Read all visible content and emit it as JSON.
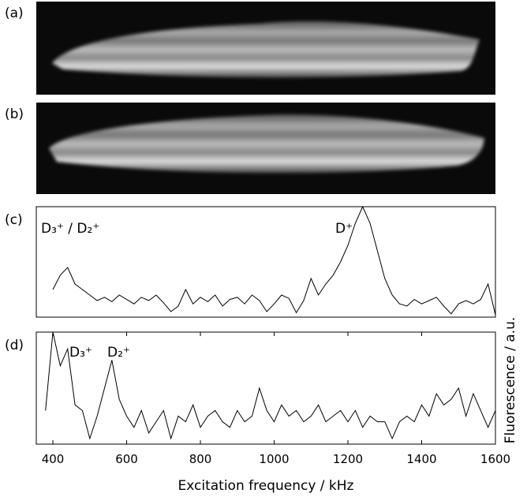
{
  "images": [
    {
      "label": "(a)"
    },
    {
      "label": "(b)"
    }
  ],
  "shared_ylabel": "Fluorescence / a.u.",
  "chart_data": [
    {
      "type": "line",
      "panel_label": "(c)",
      "color": "#000000",
      "xlim": [
        355,
        1600
      ],
      "ylim": [
        0,
        1
      ],
      "x": [
        400,
        420,
        440,
        460,
        480,
        500,
        520,
        540,
        560,
        580,
        600,
        620,
        640,
        660,
        680,
        700,
        720,
        740,
        760,
        780,
        800,
        820,
        840,
        860,
        880,
        900,
        920,
        940,
        960,
        980,
        1000,
        1020,
        1040,
        1060,
        1080,
        1100,
        1120,
        1140,
        1160,
        1180,
        1200,
        1220,
        1240,
        1260,
        1280,
        1300,
        1320,
        1340,
        1360,
        1380,
        1400,
        1420,
        1440,
        1460,
        1480,
        1500,
        1520,
        1540,
        1560,
        1580,
        1600
      ],
      "values": [
        0.25,
        0.38,
        0.45,
        0.3,
        0.25,
        0.2,
        0.15,
        0.18,
        0.14,
        0.2,
        0.16,
        0.12,
        0.18,
        0.15,
        0.2,
        0.13,
        0.05,
        0.1,
        0.25,
        0.12,
        0.18,
        0.14,
        0.2,
        0.1,
        0.16,
        0.18,
        0.12,
        0.2,
        0.15,
        0.05,
        0.12,
        0.2,
        0.17,
        0.04,
        0.15,
        0.35,
        0.2,
        0.3,
        0.38,
        0.5,
        0.65,
        0.85,
        1.0,
        0.85,
        0.6,
        0.35,
        0.2,
        0.12,
        0.1,
        0.16,
        0.12,
        0.15,
        0.18,
        0.1,
        0.03,
        0.12,
        0.15,
        0.12,
        0.16,
        0.3,
        0.02
      ],
      "annotations": [
        "D₃⁺ / D₂⁺",
        "D⁺"
      ]
    },
    {
      "type": "line",
      "panel_label": "(d)",
      "color": "#000000",
      "xlim": [
        355,
        1600
      ],
      "ylim": [
        0,
        1
      ],
      "xticks": [
        400,
        600,
        800,
        1000,
        1200,
        1400,
        1600
      ],
      "xlabel": "Excitation frequency / kHz",
      "x": [
        380,
        400,
        420,
        440,
        460,
        480,
        500,
        520,
        540,
        560,
        580,
        600,
        620,
        640,
        660,
        680,
        700,
        720,
        740,
        760,
        780,
        800,
        820,
        840,
        860,
        880,
        900,
        920,
        940,
        960,
        980,
        1000,
        1020,
        1040,
        1060,
        1080,
        1100,
        1120,
        1140,
        1160,
        1180,
        1200,
        1220,
        1240,
        1260,
        1280,
        1300,
        1320,
        1340,
        1360,
        1380,
        1400,
        1420,
        1440,
        1460,
        1480,
        1500,
        1520,
        1540,
        1560,
        1580,
        1600
      ],
      "values": [
        0.3,
        1.0,
        0.7,
        0.85,
        0.35,
        0.3,
        0.05,
        0.25,
        0.5,
        0.75,
        0.4,
        0.25,
        0.15,
        0.3,
        0.1,
        0.2,
        0.3,
        0.05,
        0.25,
        0.2,
        0.35,
        0.15,
        0.25,
        0.3,
        0.2,
        0.15,
        0.3,
        0.2,
        0.25,
        0.5,
        0.3,
        0.2,
        0.35,
        0.25,
        0.3,
        0.2,
        0.25,
        0.35,
        0.2,
        0.25,
        0.3,
        0.2,
        0.3,
        0.15,
        0.25,
        0.2,
        0.2,
        0.05,
        0.2,
        0.25,
        0.2,
        0.35,
        0.25,
        0.45,
        0.35,
        0.4,
        0.5,
        0.25,
        0.45,
        0.3,
        0.15,
        0.3
      ],
      "annotations": [
        "D₃⁺",
        "D₂⁺"
      ]
    }
  ]
}
